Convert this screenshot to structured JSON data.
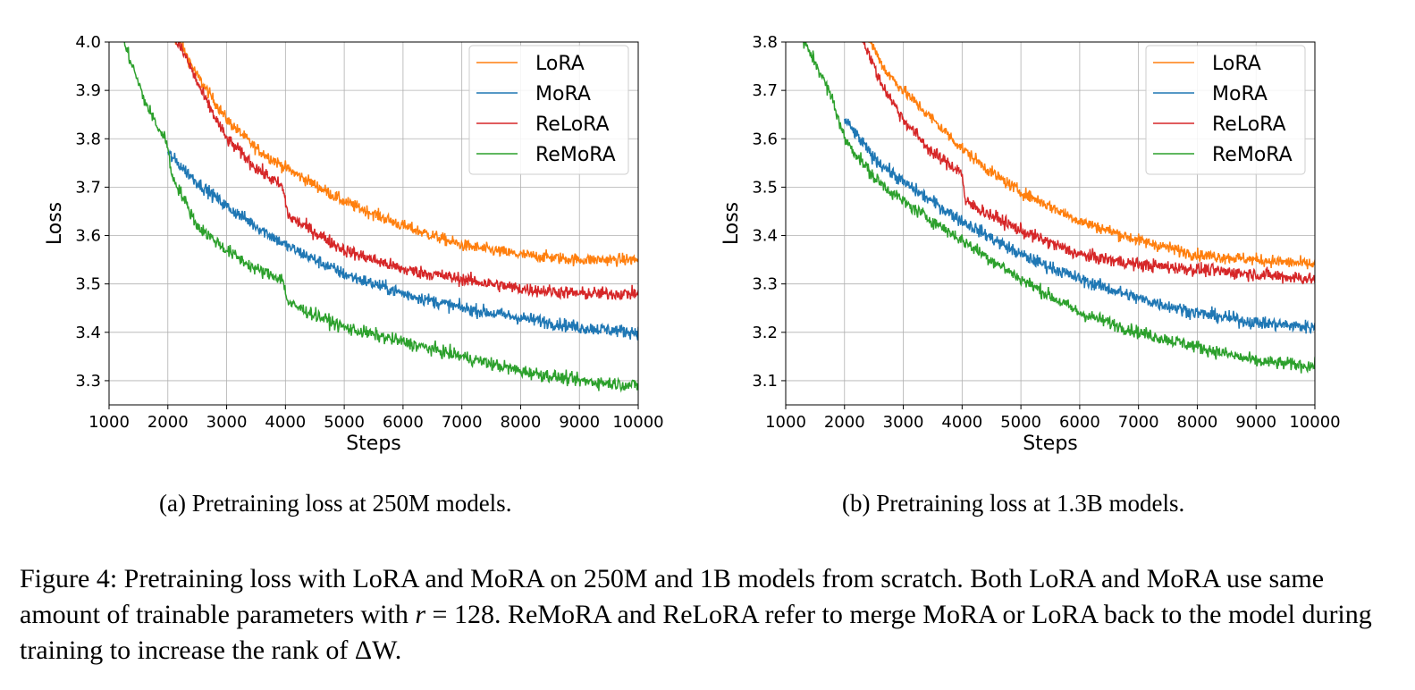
{
  "series_colors": {
    "LoRA": "#ff7f0e",
    "MoRA": "#1f77b4",
    "ReLoRA": "#d62728",
    "ReMoRA": "#2ca02c"
  },
  "chart_data": [
    {
      "type": "line",
      "title": "",
      "xlabel": "Steps",
      "ylabel": "Loss",
      "xlim": [
        1000,
        10000
      ],
      "ylim": [
        3.25,
        4.0
      ],
      "xticks": [
        1000,
        2000,
        3000,
        4000,
        5000,
        6000,
        7000,
        8000,
        9000,
        10000
      ],
      "yticks": [
        3.3,
        3.4,
        3.5,
        3.6,
        3.7,
        3.8,
        3.9,
        4.0
      ],
      "ytick_labels": [
        "3.3",
        "3.4",
        "3.5",
        "3.6",
        "3.7",
        "3.8",
        "3.9",
        "4.0"
      ],
      "grid": true,
      "legend_position": "top-right",
      "series": [
        {
          "name": "LoRA",
          "noise": 0.012,
          "x": [
            2000,
            2200,
            2500,
            3000,
            3500,
            4000,
            5000,
            6000,
            7000,
            8000,
            9000,
            10000
          ],
          "values": [
            4.02,
            4.0,
            3.93,
            3.84,
            3.78,
            3.74,
            3.67,
            3.62,
            3.58,
            3.56,
            3.55,
            3.55
          ]
        },
        {
          "name": "MoRA",
          "noise": 0.013,
          "x": [
            2000,
            2500,
            3000,
            3500,
            4000,
            5000,
            6000,
            7000,
            8000,
            9000,
            10000
          ],
          "values": [
            3.77,
            3.71,
            3.66,
            3.62,
            3.58,
            3.52,
            3.48,
            3.45,
            3.43,
            3.41,
            3.4
          ]
        },
        {
          "name": "ReLoRA",
          "noise": 0.013,
          "x": [
            2100,
            2300,
            2600,
            3000,
            3500,
            3950,
            4050,
            5000,
            6000,
            7000,
            8000,
            9000,
            10000
          ],
          "values": [
            4.01,
            3.97,
            3.89,
            3.8,
            3.74,
            3.7,
            3.64,
            3.57,
            3.53,
            3.51,
            3.49,
            3.48,
            3.48
          ]
        },
        {
          "name": "ReMoRA",
          "noise": 0.013,
          "x": [
            1250,
            1400,
            1600,
            1800,
            2000,
            2050,
            2500,
            3000,
            3500,
            3950,
            4050,
            5000,
            6000,
            7000,
            8000,
            9000,
            10000
          ],
          "values": [
            4.0,
            3.95,
            3.88,
            3.83,
            3.79,
            3.73,
            3.62,
            3.57,
            3.53,
            3.51,
            3.46,
            3.41,
            3.38,
            3.35,
            3.32,
            3.3,
            3.29
          ]
        }
      ]
    },
    {
      "type": "line",
      "title": "",
      "xlabel": "Steps",
      "ylabel": "Loss",
      "xlim": [
        1000,
        10000
      ],
      "ylim": [
        3.05,
        3.8
      ],
      "xticks": [
        1000,
        2000,
        3000,
        4000,
        5000,
        6000,
        7000,
        8000,
        9000,
        10000
      ],
      "yticks": [
        3.1,
        3.2,
        3.3,
        3.4,
        3.5,
        3.6,
        3.7,
        3.8
      ],
      "ytick_labels": [
        "3.1",
        "3.2",
        "3.3",
        "3.4",
        "3.5",
        "3.6",
        "3.7",
        "3.8"
      ],
      "grid": true,
      "legend_position": "top-right",
      "series": [
        {
          "name": "LoRA",
          "noise": 0.012,
          "x": [
            2400,
            2700,
            3000,
            3500,
            4000,
            4500,
            5000,
            6000,
            7000,
            8000,
            9000,
            10000
          ],
          "values": [
            3.81,
            3.74,
            3.7,
            3.64,
            3.58,
            3.53,
            3.49,
            3.43,
            3.39,
            3.36,
            3.35,
            3.34
          ]
        },
        {
          "name": "MoRA",
          "noise": 0.013,
          "x": [
            2000,
            2500,
            3000,
            3500,
            4000,
            5000,
            6000,
            7000,
            8000,
            9000,
            10000
          ],
          "values": [
            3.64,
            3.56,
            3.51,
            3.47,
            3.43,
            3.36,
            3.31,
            3.27,
            3.24,
            3.22,
            3.21
          ]
        },
        {
          "name": "ReLoRA",
          "noise": 0.013,
          "x": [
            2300,
            2600,
            3000,
            3500,
            4000,
            4050,
            5000,
            6000,
            7000,
            8000,
            9000,
            10000
          ],
          "values": [
            3.81,
            3.72,
            3.64,
            3.57,
            3.53,
            3.47,
            3.41,
            3.36,
            3.34,
            3.33,
            3.32,
            3.31
          ]
        },
        {
          "name": "ReMoRA",
          "noise": 0.013,
          "x": [
            1300,
            1500,
            1800,
            2000,
            2500,
            3000,
            3500,
            4000,
            5000,
            6000,
            7000,
            8000,
            9000,
            10000
          ],
          "values": [
            3.8,
            3.76,
            3.68,
            3.6,
            3.52,
            3.47,
            3.43,
            3.39,
            3.31,
            3.24,
            3.2,
            3.17,
            3.14,
            3.13
          ]
        }
      ]
    }
  ],
  "subcaptions": {
    "a_tag": "(a)",
    "a_text": "Pretraining loss at 250M models.",
    "b_tag": "(b)",
    "b_text": "Pretraining loss at 1.3B models."
  },
  "caption": {
    "part1": "Figure 4: Pretraining loss with LoRA and MoRA on 250M and 1B models from scratch. Both LoRA and MoRA use same amount of trainable parameters with ",
    "var_r": "r",
    "equals": " = 128",
    "part2": ". ReMoRA and ReLoRA refer to merge MoRA or LoRA back to the model during training to increase the rank of ",
    "delta": "ΔW",
    "part3": "."
  }
}
